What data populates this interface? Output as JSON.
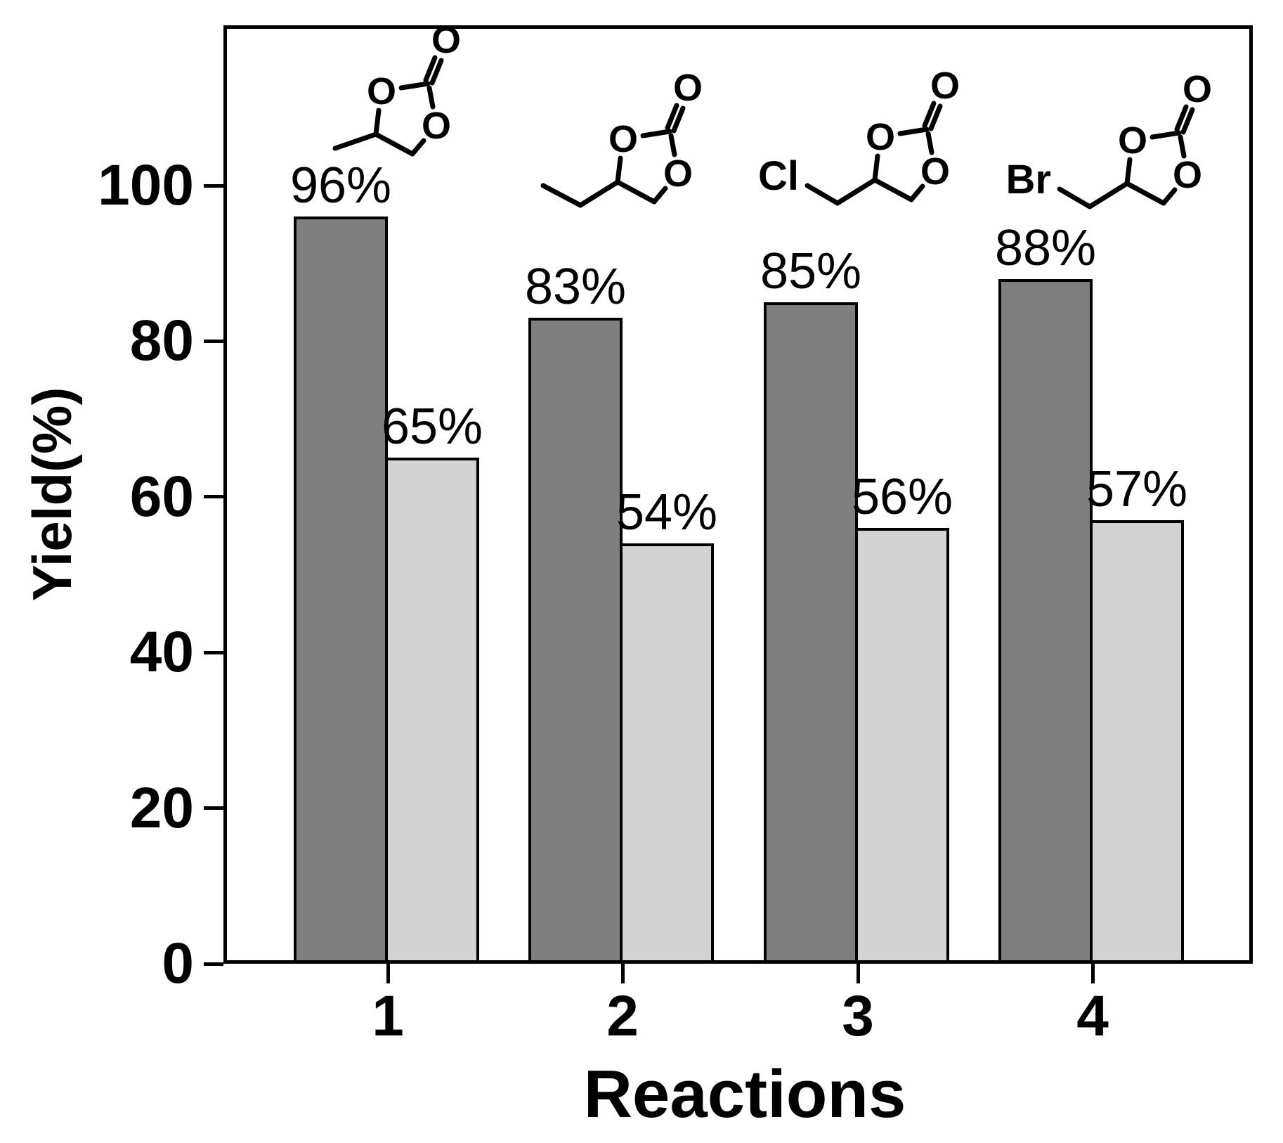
{
  "chart_data": {
    "type": "bar",
    "title": "",
    "xlabel": "Reactions",
    "ylabel": "Yield(%)",
    "categories": [
      "1",
      "2",
      "3",
      "4"
    ],
    "series": [
      {
        "name": "first-yield-dark-gray",
        "color": "#7f7f7f",
        "values": [
          96,
          83,
          85,
          88
        ],
        "labels": [
          "96%",
          "83%",
          "85%",
          "88%"
        ]
      },
      {
        "name": "second-yield-light-gray",
        "color": "#d3d3d3",
        "values": [
          65,
          54,
          56,
          57
        ],
        "labels": [
          "65%",
          "54%",
          "56%",
          "57%"
        ]
      }
    ],
    "ylim": [
      0,
      120
    ],
    "yticks": [
      0,
      20,
      40,
      60,
      80,
      100
    ],
    "grid": false,
    "legend": false,
    "annotations": "cyclic carbonate structure drawn above each reaction group"
  },
  "structures": [
    {
      "name": "propylene-carbonate",
      "substituent_type": "methyl",
      "halogen_label": "",
      "ring_atom_labels": [
        "O",
        "O",
        "O"
      ]
    },
    {
      "name": "butylene-carbonate",
      "substituent_type": "ethyl",
      "halogen_label": "",
      "ring_atom_labels": [
        "O",
        "O",
        "O"
      ]
    },
    {
      "name": "chloromethyl-ethylene-carbonate",
      "substituent_type": "halomethyl",
      "halogen_label": "Cl",
      "ring_atom_labels": [
        "O",
        "O",
        "O"
      ]
    },
    {
      "name": "bromomethyl-ethylene-carbonate",
      "substituent_type": "halomethyl",
      "halogen_label": "Br",
      "ring_atom_labels": [
        "O",
        "O",
        "O"
      ]
    }
  ],
  "colors": {
    "bar_dark": "#7f7f7f",
    "bar_light": "#d3d3d3",
    "axis": "#000000",
    "background": "#ffffff"
  }
}
